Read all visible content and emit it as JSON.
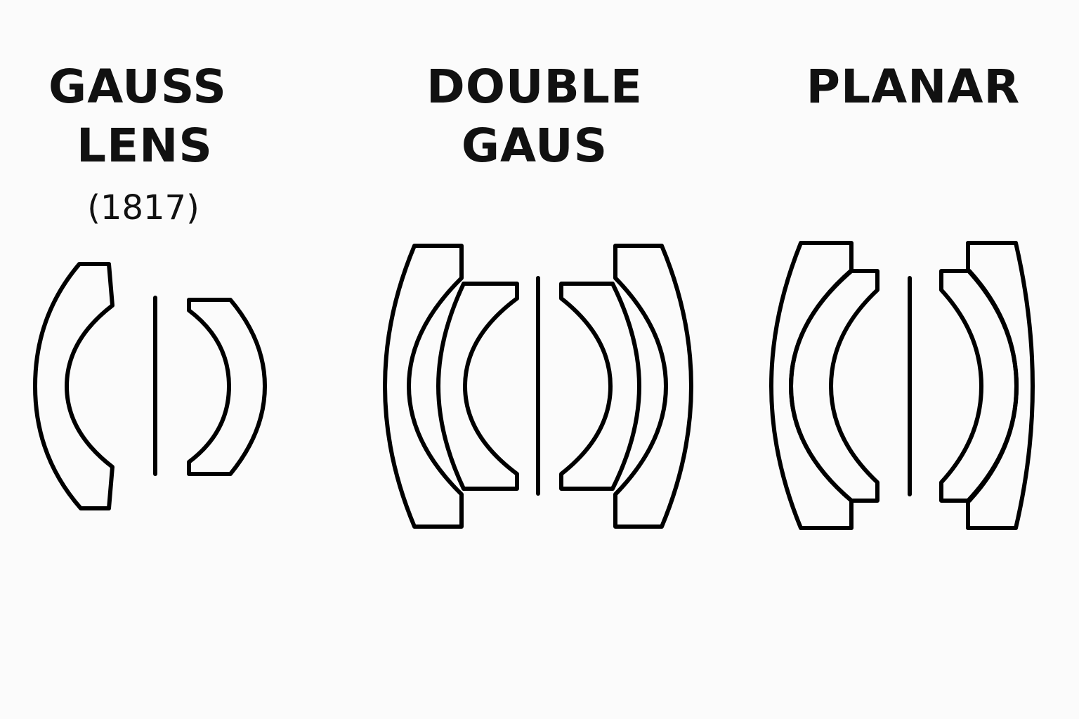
{
  "panels": [
    {
      "title_line1": "GAUSS",
      "title_line2": "LENS",
      "year": "(1817)"
    },
    {
      "title": "DOUBLE GAUS"
    },
    {
      "title": "PLANAR"
    }
  ]
}
